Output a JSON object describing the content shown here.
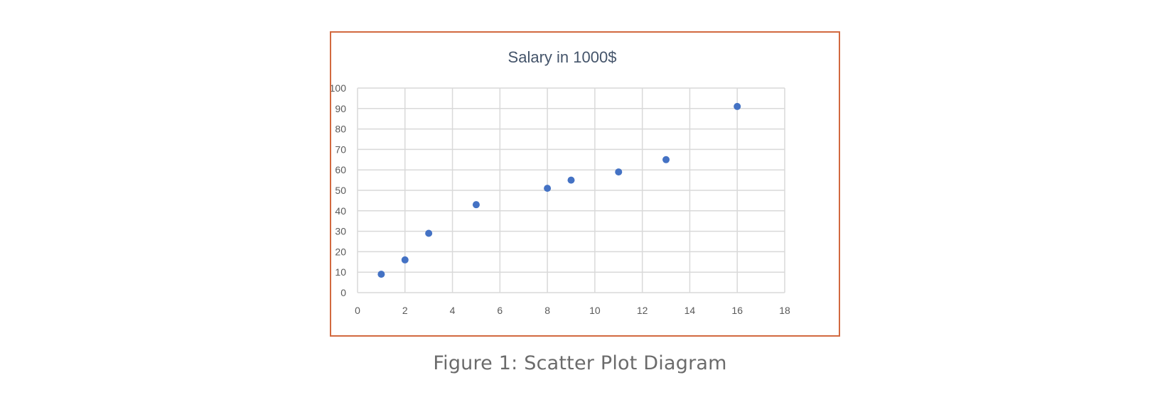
{
  "figure": {
    "caption": "Figure 1: Scatter Plot Diagram"
  },
  "colors": {
    "frame_border": "#d2693f",
    "title": "#44546a",
    "points": "#4472c4",
    "grid": "#d9d9d9",
    "tick_text": "#595959",
    "caption": "#6b6b6b"
  },
  "chart_data": {
    "type": "scatter",
    "title": "Salary in 1000$",
    "xlabel": "",
    "ylabel": "",
    "xlim": [
      0,
      18
    ],
    "ylim": [
      0,
      100
    ],
    "xticks": [
      0,
      2,
      4,
      6,
      8,
      10,
      12,
      14,
      16,
      18
    ],
    "yticks": [
      0,
      10,
      20,
      30,
      40,
      50,
      60,
      70,
      80,
      90,
      100
    ],
    "grid": true,
    "legend": "none",
    "series": [
      {
        "x": [
          1,
          2,
          3,
          5,
          8,
          9,
          11,
          13,
          16
        ],
        "y": [
          9,
          16,
          29,
          43,
          51,
          55,
          59,
          65,
          91
        ]
      }
    ]
  }
}
